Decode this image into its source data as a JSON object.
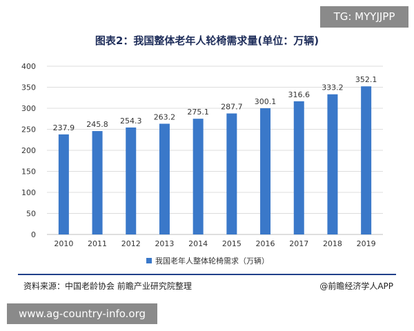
{
  "watermark_tag": "TG: MYYJJPP",
  "footer": {
    "source": "资料来源：中国老龄协会 前瞻产业研究院整理",
    "brand": "@前瞻经济学人APP",
    "site": "www.ag-country-info.org"
  },
  "colors": {
    "bar": "#3a78c9",
    "rule": "#1f3f8a",
    "grid": "#dcdcdc",
    "axis_text": "#333333"
  },
  "chart_data": {
    "type": "bar",
    "title": "图表2：我国整体老年人轮椅需求量(单位：万辆)",
    "xlabel": "",
    "ylabel": "",
    "categories": [
      "2010",
      "2011",
      "2012",
      "2013",
      "2014",
      "2015",
      "2016",
      "2017",
      "2018",
      "2019"
    ],
    "series": [
      {
        "name": "我国老年人整体轮椅需求（万辆）",
        "values": [
          237.9,
          245.8,
          254.3,
          263.2,
          275.1,
          287.7,
          300.1,
          316.6,
          333.2,
          352.1
        ]
      }
    ],
    "ylim": [
      0,
      400
    ],
    "yticks": [
      0,
      50,
      100,
      150,
      200,
      250,
      300,
      350,
      400
    ],
    "grid": true,
    "legend_position": "bottom"
  }
}
